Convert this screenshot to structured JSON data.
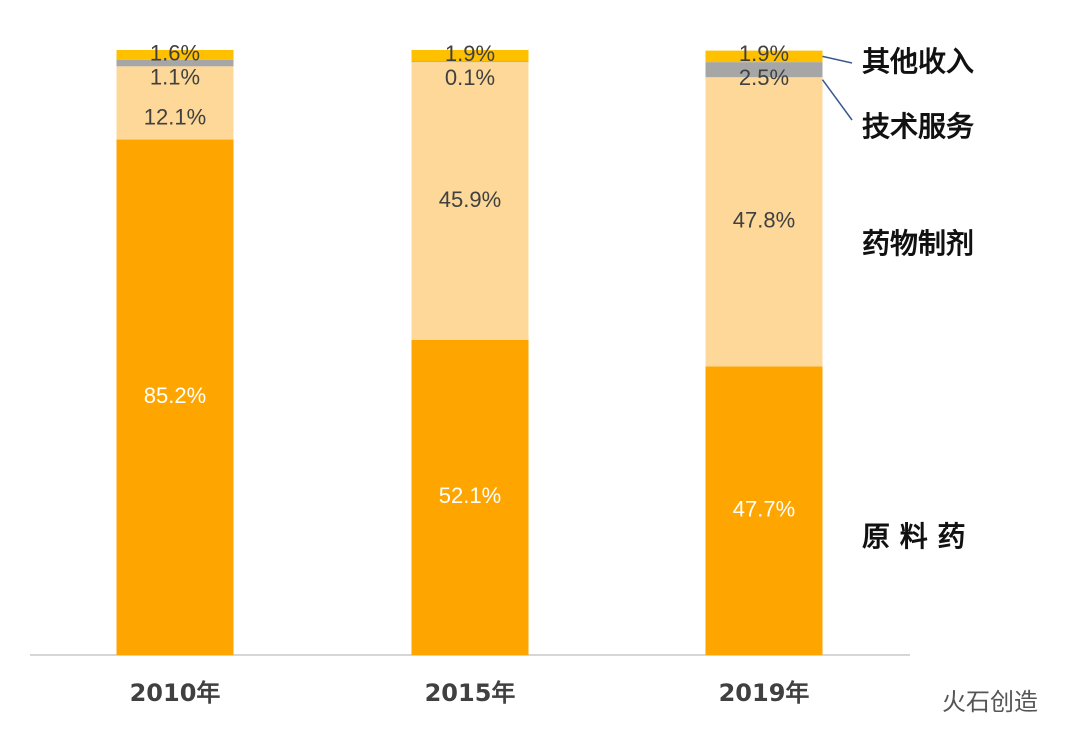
{
  "chart_data": {
    "type": "stacked_bar",
    "categories": [
      "2010年",
      "2015年",
      "2019年"
    ],
    "ylim": [
      0,
      100
    ],
    "series": [
      {
        "name": "原 料 药",
        "color": "#FFA500",
        "values": [
          85.2,
          52.1,
          47.7
        ],
        "value_labels": [
          "85.2%",
          "52.1%",
          "47.7%"
        ]
      },
      {
        "name": "药物制剂",
        "color": "#FDD898",
        "values": [
          12.1,
          45.9,
          47.8
        ],
        "value_labels": [
          "12.1%",
          "45.9%",
          "47.8%"
        ]
      },
      {
        "name": "技术服务",
        "color": "#A6A6A6",
        "values": [
          1.1,
          0.1,
          2.5
        ],
        "value_labels": [
          "1.1%",
          "0.1%",
          "2.5%"
        ]
      },
      {
        "name": "其他收入",
        "color": "#FFC000",
        "values": [
          1.6,
          1.9,
          1.9
        ],
        "value_labels": [
          "1.6%",
          "1.9%",
          "1.9%"
        ]
      }
    ],
    "watermark": "火石创造"
  }
}
